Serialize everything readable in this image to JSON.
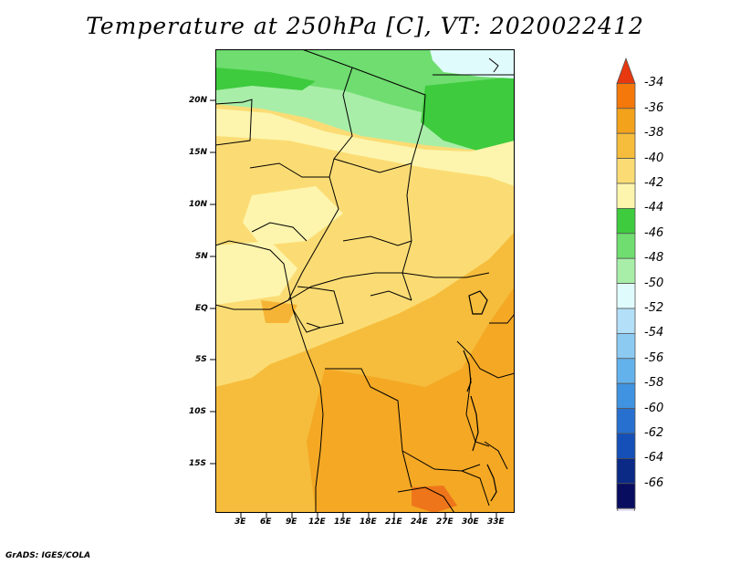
{
  "title": "Temperature at 250hPa [C], VT: 2020022412",
  "credit": "GrADS: IGES/COLA",
  "lat_labels": [
    "20N",
    "15N",
    "10N",
    "5N",
    "EQ",
    "5S",
    "10S",
    "15S"
  ],
  "lon_labels": [
    "3E",
    "6E",
    "9E",
    "12E",
    "15E",
    "18E",
    "21E",
    "24E",
    "27E",
    "30E",
    "33E"
  ],
  "colorbar": {
    "labels": [
      "-34",
      "-36",
      "-38",
      "-40",
      "-42",
      "-44",
      "-46",
      "-48",
      "-50",
      "-52",
      "-54",
      "-56",
      "-58",
      "-60",
      "-62",
      "-64",
      "-66"
    ],
    "colors": [
      "#e8380f",
      "#f5780a",
      "#f3a21c",
      "#f6bd3c",
      "#fbdc74",
      "#fdf5ad",
      "#3ecb3e",
      "#6fdd6f",
      "#a8eea8",
      "#e0fbfb",
      "#b3dff8",
      "#8ccaf2",
      "#64b2ec",
      "#3f93e0",
      "#2770d0",
      "#1450b8",
      "#0a2a85",
      "#080d60",
      "#e8e4f6"
    ]
  }
}
